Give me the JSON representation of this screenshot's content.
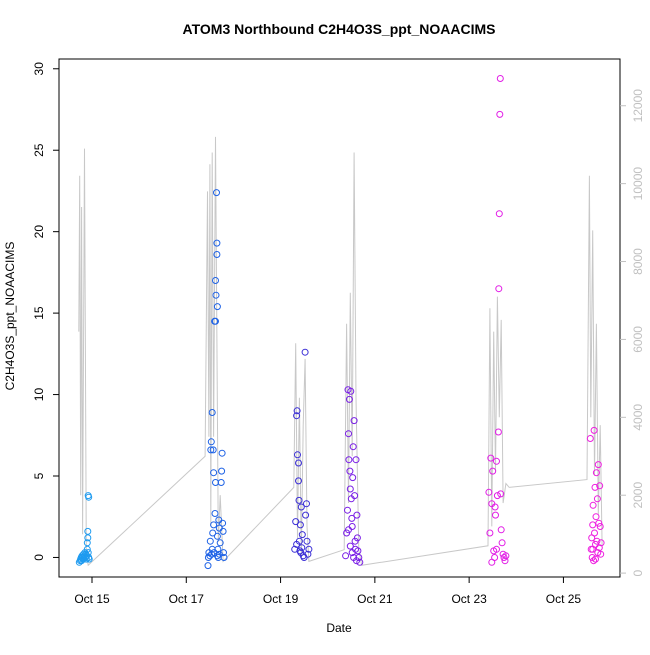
{
  "chart_data": {
    "type": "scatter",
    "title": "ATOM3 Northbound C2H4O3S_ppt_NOAACIMS",
    "xlabel": "Date",
    "ylabel": "C2H4O3S_ppt_NOAACIMS",
    "x_ticks": [
      "Oct 15",
      "Oct 17",
      "Oct 19",
      "Oct 21",
      "Oct 23",
      "Oct 25"
    ],
    "x_tick_days": [
      15,
      17,
      19,
      21,
      23,
      25
    ],
    "xlim_days": [
      14.3,
      26.2
    ],
    "ylim": [
      -1.2,
      30.6
    ],
    "y_ticks": [
      0,
      5,
      10,
      15,
      20,
      25,
      30
    ],
    "y2lim": [
      -100,
      13200
    ],
    "y2_ticks": [
      0,
      2000,
      4000,
      6000,
      8000,
      10000,
      12000
    ],
    "grid": false,
    "legend": "none",
    "colors": {
      "axis": "#000000",
      "right_axis": "#c0c0c0",
      "altitude_line": "#c8c8c8",
      "flight_colors": [
        "#1e9bf0",
        "#1f63e6",
        "#3b2fd6",
        "#7a1ee6",
        "#e21ee6",
        "#ee1ee0"
      ]
    },
    "flights": [
      {
        "day_start": 14.72,
        "day_end": 14.95,
        "points": [
          [
            14.73,
            -0.3
          ],
          [
            14.75,
            -0.2
          ],
          [
            14.76,
            -0.1
          ],
          [
            14.77,
            0.0
          ],
          [
            14.78,
            -0.2
          ],
          [
            14.79,
            0.1
          ],
          [
            14.8,
            0.0
          ],
          [
            14.81,
            -0.1
          ],
          [
            14.82,
            0.2
          ],
          [
            14.83,
            0.0
          ],
          [
            14.84,
            0.1
          ],
          [
            14.85,
            0.3
          ],
          [
            14.86,
            0.0
          ],
          [
            14.87,
            0.2
          ],
          [
            14.88,
            -0.1
          ],
          [
            14.89,
            0.1
          ],
          [
            14.9,
            0.5
          ],
          [
            14.9,
            0.9
          ],
          [
            14.91,
            1.2
          ],
          [
            14.91,
            1.6
          ],
          [
            14.92,
            0.3
          ],
          [
            14.93,
            0.0
          ],
          [
            14.92,
            3.8
          ],
          [
            14.93,
            3.7
          ],
          [
            14.94,
            -0.1
          ]
        ]
      },
      {
        "day_start": 17.45,
        "day_end": 17.82,
        "points": [
          [
            17.46,
            -0.5
          ],
          [
            17.47,
            0.0
          ],
          [
            17.48,
            0.3
          ],
          [
            17.5,
            0.1
          ],
          [
            17.51,
            1.0
          ],
          [
            17.52,
            6.6
          ],
          [
            17.53,
            7.1
          ],
          [
            17.54,
            0.2
          ],
          [
            17.55,
            8.9
          ],
          [
            17.55,
            0.5
          ],
          [
            17.56,
            1.5
          ],
          [
            17.57,
            6.6
          ],
          [
            17.58,
            2.0
          ],
          [
            17.59,
            0.3
          ],
          [
            17.6,
            14.5
          ],
          [
            17.61,
            2.7
          ],
          [
            17.62,
            14.5
          ],
          [
            17.62,
            17.0
          ],
          [
            17.63,
            16.1
          ],
          [
            17.64,
            22.4
          ],
          [
            17.65,
            19.3
          ],
          [
            17.65,
            18.6
          ],
          [
            17.66,
            15.4
          ],
          [
            17.66,
            1.3
          ],
          [
            17.67,
            0.5
          ],
          [
            17.68,
            0.0
          ],
          [
            17.69,
            2.3
          ],
          [
            17.7,
            1.8
          ],
          [
            17.7,
            0.2
          ],
          [
            17.72,
            0.9
          ],
          [
            17.74,
            4.6
          ],
          [
            17.75,
            5.3
          ],
          [
            17.76,
            6.4
          ],
          [
            17.77,
            2.1
          ],
          [
            17.78,
            1.6
          ],
          [
            17.79,
            0.3
          ],
          [
            17.8,
            0.0
          ],
          [
            17.62,
            4.6
          ],
          [
            17.58,
            5.2
          ],
          [
            17.66,
            0.1
          ]
        ]
      },
      {
        "day_start": 19.28,
        "day_end": 19.62,
        "points": [
          [
            19.3,
            0.5
          ],
          [
            19.32,
            2.2
          ],
          [
            19.34,
            8.7
          ],
          [
            19.35,
            9.0
          ],
          [
            19.36,
            6.3
          ],
          [
            19.38,
            5.8
          ],
          [
            19.39,
            3.5
          ],
          [
            19.4,
            1.0
          ],
          [
            19.41,
            0.4
          ],
          [
            19.42,
            2.0
          ],
          [
            19.44,
            3.1
          ],
          [
            19.45,
            0.6
          ],
          [
            19.46,
            1.4
          ],
          [
            19.48,
            0.1
          ],
          [
            19.5,
            0.0
          ],
          [
            19.52,
            12.6
          ],
          [
            19.53,
            2.6
          ],
          [
            19.55,
            3.3
          ],
          [
            19.56,
            1.0
          ],
          [
            19.58,
            0.2
          ],
          [
            19.6,
            0.5
          ],
          [
            19.34,
            0.8
          ],
          [
            19.38,
            4.7
          ],
          [
            19.43,
            0.3
          ]
        ]
      },
      {
        "day_start": 20.35,
        "day_end": 20.72,
        "points": [
          [
            20.38,
            0.1
          ],
          [
            20.4,
            1.5
          ],
          [
            20.42,
            2.9
          ],
          [
            20.43,
            10.3
          ],
          [
            20.44,
            7.6
          ],
          [
            20.45,
            6.0
          ],
          [
            20.46,
            9.7
          ],
          [
            20.47,
            5.3
          ],
          [
            20.48,
            4.2
          ],
          [
            20.49,
            10.2
          ],
          [
            20.5,
            3.6
          ],
          [
            20.51,
            2.4
          ],
          [
            20.52,
            0.3
          ],
          [
            20.53,
            4.9
          ],
          [
            20.54,
            6.8
          ],
          [
            20.55,
            0.0
          ],
          [
            20.56,
            8.4
          ],
          [
            20.57,
            3.8
          ],
          [
            20.58,
            1.0
          ],
          [
            20.59,
            0.5
          ],
          [
            20.6,
            6.0
          ],
          [
            20.61,
            -0.2
          ],
          [
            20.62,
            2.6
          ],
          [
            20.63,
            1.2
          ],
          [
            20.64,
            0.4
          ],
          [
            20.66,
            0.0
          ],
          [
            20.68,
            -0.3
          ],
          [
            20.44,
            1.7
          ],
          [
            20.48,
            0.7
          ],
          [
            20.52,
            1.9
          ]
        ]
      },
      {
        "day_start": 23.4,
        "day_end": 23.85,
        "points": [
          [
            23.42,
            4.0
          ],
          [
            23.44,
            1.5
          ],
          [
            23.46,
            6.1
          ],
          [
            23.48,
            3.3
          ],
          [
            23.5,
            5.3
          ],
          [
            23.52,
            0.4
          ],
          [
            23.54,
            0.0
          ],
          [
            23.55,
            3.1
          ],
          [
            23.56,
            2.6
          ],
          [
            23.58,
            5.9
          ],
          [
            23.6,
            3.8
          ],
          [
            23.62,
            7.7
          ],
          [
            23.63,
            16.5
          ],
          [
            23.64,
            21.1
          ],
          [
            23.65,
            27.2
          ],
          [
            23.66,
            29.4
          ],
          [
            23.67,
            3.9
          ],
          [
            23.68,
            1.7
          ],
          [
            23.7,
            0.9
          ],
          [
            23.72,
            0.2
          ],
          [
            23.74,
            0.0
          ],
          [
            23.76,
            -0.2
          ],
          [
            23.78,
            0.1
          ],
          [
            23.48,
            -0.3
          ],
          [
            23.58,
            0.5
          ]
        ]
      },
      {
        "day_start": 25.55,
        "day_end": 25.82,
        "points": [
          [
            25.57,
            7.3
          ],
          [
            25.59,
            0.5
          ],
          [
            25.6,
            1.2
          ],
          [
            25.61,
            0.0
          ],
          [
            25.62,
            2.0
          ],
          [
            25.63,
            3.2
          ],
          [
            25.64,
            -0.2
          ],
          [
            25.65,
            7.8
          ],
          [
            25.66,
            1.5
          ],
          [
            25.67,
            4.3
          ],
          [
            25.68,
            0.8
          ],
          [
            25.69,
            2.5
          ],
          [
            25.7,
            5.2
          ],
          [
            25.71,
            1.0
          ],
          [
            25.72,
            3.6
          ],
          [
            25.73,
            0.3
          ],
          [
            25.74,
            5.7
          ],
          [
            25.75,
            2.1
          ],
          [
            25.76,
            0.6
          ],
          [
            25.77,
            4.4
          ],
          [
            25.78,
            1.9
          ],
          [
            25.79,
            0.2
          ],
          [
            25.8,
            0.9
          ],
          [
            25.62,
            0.5
          ],
          [
            25.68,
            -0.1
          ]
        ]
      }
    ],
    "altitude_series": {
      "label": "altitude",
      "points": [
        [
          14.72,
          6200
        ],
        [
          14.74,
          10200
        ],
        [
          14.76,
          2000
        ],
        [
          14.78,
          9400
        ],
        [
          14.8,
          1000
        ],
        [
          14.84,
          10900
        ],
        [
          14.88,
          500
        ],
        [
          14.92,
          200
        ],
        [
          17.4,
          3000
        ],
        [
          17.45,
          9800
        ],
        [
          17.48,
          3500
        ],
        [
          17.5,
          10500
        ],
        [
          17.52,
          1200
        ],
        [
          17.55,
          10800
        ],
        [
          17.58,
          3500
        ],
        [
          17.62,
          11200
        ],
        [
          17.65,
          6000
        ],
        [
          17.68,
          800
        ],
        [
          17.72,
          2000
        ],
        [
          17.78,
          300
        ],
        [
          19.28,
          2200
        ],
        [
          19.32,
          5900
        ],
        [
          19.36,
          900
        ],
        [
          19.4,
          4500
        ],
        [
          19.44,
          400
        ],
        [
          19.48,
          3800
        ],
        [
          19.52,
          5500
        ],
        [
          19.56,
          1200
        ],
        [
          19.6,
          300
        ],
        [
          20.35,
          600
        ],
        [
          20.4,
          6400
        ],
        [
          20.44,
          1800
        ],
        [
          20.48,
          7200
        ],
        [
          20.52,
          3000
        ],
        [
          20.56,
          10800
        ],
        [
          20.6,
          4500
        ],
        [
          20.66,
          600
        ],
        [
          20.72,
          200
        ],
        [
          23.4,
          700
        ],
        [
          23.44,
          6800
        ],
        [
          23.48,
          1200
        ],
        [
          23.52,
          6200
        ],
        [
          23.56,
          2600
        ],
        [
          23.6,
          7100
        ],
        [
          23.64,
          4000
        ],
        [
          23.68,
          6500
        ],
        [
          23.72,
          1800
        ],
        [
          23.78,
          2300
        ],
        [
          23.85,
          2200
        ],
        [
          25.5,
          2400
        ],
        [
          25.55,
          10200
        ],
        [
          25.58,
          4000
        ],
        [
          25.62,
          8800
        ],
        [
          25.66,
          2500
        ],
        [
          25.7,
          6400
        ],
        [
          25.74,
          1500
        ],
        [
          25.78,
          3800
        ],
        [
          25.82,
          700
        ]
      ]
    }
  }
}
